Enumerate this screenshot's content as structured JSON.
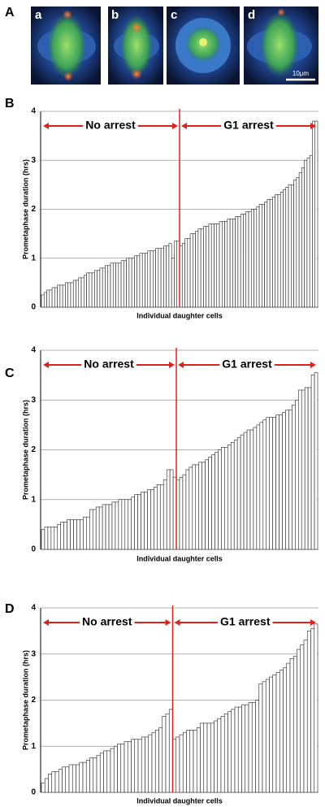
{
  "panels": [
    "A",
    "B",
    "C",
    "D"
  ],
  "images": {
    "labels": [
      "a",
      "b",
      "c",
      "d"
    ],
    "scale_bar": "10μm"
  },
  "chart_data": [
    {
      "type": "bar",
      "xlabel": "Individual daughter cells",
      "ylabel": "Prometaphase duration (hrs)",
      "ylim": [
        0,
        4
      ],
      "yticks": [
        0,
        1,
        2,
        3,
        4
      ],
      "grid": true,
      "series": [
        {
          "name": "No arrest",
          "color": "#ffffff",
          "values": [
            0.25,
            0.3,
            0.35,
            0.35,
            0.4,
            0.4,
            0.45,
            0.45,
            0.45,
            0.5,
            0.5,
            0.5,
            0.55,
            0.55,
            0.6,
            0.6,
            0.65,
            0.7,
            0.7,
            0.7,
            0.75,
            0.75,
            0.8,
            0.8,
            0.85,
            0.85,
            0.9,
            0.9,
            0.9,
            0.9,
            0.95,
            0.95,
            1.0,
            1.0,
            1.0,
            1.05,
            1.05,
            1.1,
            1.1,
            1.1,
            1.15,
            1.15,
            1.15,
            1.2,
            1.2,
            1.2,
            1.25,
            1.25,
            1.3,
            1.0,
            1.35,
            1.35
          ]
        },
        {
          "name": "G1 arrest",
          "color": "#ffffff",
          "values": [
            1.25,
            1.3,
            1.4,
            1.4,
            1.5,
            1.5,
            1.55,
            1.6,
            1.6,
            1.65,
            1.65,
            1.7,
            1.7,
            1.7,
            1.7,
            1.75,
            1.75,
            1.75,
            1.8,
            1.8,
            1.8,
            1.85,
            1.85,
            1.9,
            1.9,
            1.95,
            1.95,
            2.0,
            2.0,
            2.05,
            2.1,
            2.1,
            2.15,
            2.2,
            2.2,
            2.25,
            2.3,
            2.3,
            2.35,
            2.4,
            2.45,
            2.5,
            2.5,
            2.6,
            2.65,
            2.75,
            2.85,
            3.0,
            3.05,
            3.1,
            3.8,
            3.8
          ]
        }
      ]
    },
    {
      "type": "bar",
      "xlabel": "Individual daughter cells",
      "ylabel": "Prometaphase duration (hrs)",
      "ylim": [
        0,
        4
      ],
      "yticks": [
        0,
        1,
        2,
        3,
        4
      ],
      "grid": true,
      "series": [
        {
          "name": "No arrest",
          "color": "#ffffff",
          "values": [
            0.4,
            0.45,
            0.45,
            0.45,
            0.45,
            0.5,
            0.55,
            0.55,
            0.6,
            0.6,
            0.6,
            0.6,
            0.6,
            0.65,
            0.65,
            0.8,
            0.8,
            0.85,
            0.85,
            0.9,
            0.9,
            0.9,
            0.95,
            0.95,
            1.0,
            1.0,
            1.0,
            1.0,
            1.05,
            1.1,
            1.1,
            1.15,
            1.15,
            1.2,
            1.2,
            1.25,
            1.3,
            1.3,
            1.4,
            1.6,
            1.6,
            1.45
          ]
        },
        {
          "name": "G1 arrest",
          "color": "#ffffff",
          "values": [
            1.4,
            1.45,
            1.5,
            1.6,
            1.65,
            1.7,
            1.7,
            1.75,
            1.75,
            1.8,
            1.85,
            1.9,
            1.95,
            2.0,
            2.05,
            2.05,
            2.1,
            2.15,
            2.2,
            2.25,
            2.3,
            2.35,
            2.4,
            2.4,
            2.45,
            2.5,
            2.55,
            2.6,
            2.65,
            2.65,
            2.65,
            2.7,
            2.7,
            2.75,
            2.8,
            2.8,
            2.9,
            3.0,
            3.2,
            3.2,
            3.25,
            3.25,
            3.5,
            3.55
          ]
        }
      ]
    },
    {
      "type": "bar",
      "xlabel": "Individual daughter cells",
      "ylabel": "Prometaphase duration (hrs)",
      "ylim": [
        0,
        4
      ],
      "yticks": [
        0,
        1,
        2,
        3,
        4
      ],
      "grid": true,
      "series": [
        {
          "name": "No arrest",
          "color": "#ffffff",
          "values": [
            0.2,
            0.3,
            0.4,
            0.45,
            0.45,
            0.5,
            0.55,
            0.55,
            0.6,
            0.6,
            0.6,
            0.65,
            0.65,
            0.7,
            0.75,
            0.75,
            0.8,
            0.85,
            0.9,
            0.9,
            0.95,
            1.0,
            1.05,
            1.05,
            1.1,
            1.1,
            1.15,
            1.15,
            1.15,
            1.2,
            1.2,
            1.25,
            1.3,
            1.35,
            1.4,
            1.65,
            1.7,
            1.8
          ]
        },
        {
          "name": "G1 arrest",
          "color": "#ffffff",
          "values": [
            1.15,
            1.2,
            1.25,
            1.3,
            1.35,
            1.35,
            1.35,
            1.4,
            1.5,
            1.5,
            1.5,
            1.5,
            1.55,
            1.6,
            1.65,
            1.7,
            1.75,
            1.8,
            1.85,
            1.85,
            1.9,
            1.9,
            1.95,
            1.95,
            2.0,
            2.35,
            2.4,
            2.45,
            2.5,
            2.55,
            2.6,
            2.65,
            2.7,
            2.8,
            2.9,
            2.95,
            3.1,
            3.2,
            3.3,
            3.5,
            3.55,
            3.65
          ]
        }
      ]
    }
  ]
}
